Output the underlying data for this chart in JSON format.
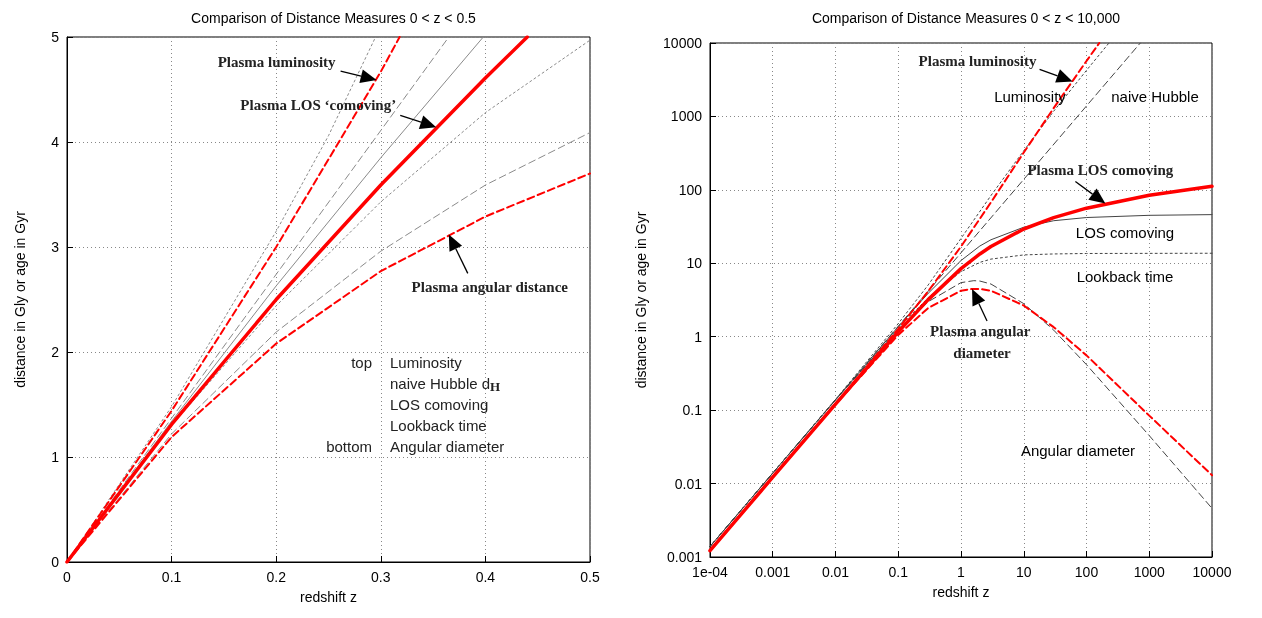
{
  "chart_data": [
    {
      "type": "line",
      "title": "Comparison of Distance Measures 0 < z < 0.5",
      "xlabel": "redshift z",
      "ylabel": "distance in Gly or age in Gyr",
      "xlim": [
        0,
        0.5
      ],
      "ylim": [
        0,
        5
      ],
      "xticks": [
        0,
        0.1,
        0.2,
        0.3,
        0.4,
        0.5
      ],
      "yticks": [
        0,
        1,
        2,
        3,
        4,
        5
      ],
      "grid": true,
      "legend": false,
      "marker": "none",
      "annotations": [
        "top",
        "Luminosity",
        "naive Hubble d$_{H}$",
        "LOS comoving",
        "Lookback time",
        "bottom",
        "Angular diameter",
        {
          "text": "Plasma luminosity",
          "x": 0.296,
          "y": 4.59
        },
        {
          "text": "Plasma LOS ‘comoving’",
          "x": 0.353,
          "y": 4.14
        },
        {
          "text": "Plasma angular distance",
          "x": 0.365,
          "y": 3.12
        }
      ],
      "series": [
        {
          "color": "#8a8a8a",
          "line_style": "dotted",
          "x": [
            0,
            0.1,
            0.2,
            0.25,
            0.295
          ],
          "values": [
            0,
            1.48,
            3.15,
            4.06,
            5
          ]
        },
        {
          "color": "#8a8a8a",
          "line_style": "dashed",
          "x": [
            0,
            0.365
          ],
          "values": [
            0,
            5
          ]
        },
        {
          "color": "#8a8a8a",
          "line_style": "solid",
          "x": [
            0,
            0.1,
            0.2,
            0.3,
            0.398
          ],
          "values": [
            0,
            1.34,
            2.63,
            3.85,
            5
          ]
        },
        {
          "color": "#8a8a8a",
          "line_style": "dotted",
          "x": [
            0,
            0.1,
            0.2,
            0.3,
            0.4,
            0.5
          ],
          "values": [
            0,
            1.3,
            2.44,
            3.43,
            4.28,
            4.97
          ]
        },
        {
          "color": "#8a8a8a",
          "line_style": "dashed",
          "x": [
            0,
            0.1,
            0.2,
            0.3,
            0.4,
            0.5
          ],
          "values": [
            0,
            1.22,
            2.19,
            2.96,
            3.59,
            4.09
          ]
        },
        {
          "color": "#ff0000",
          "line_style": "dashed",
          "x": [
            0,
            0.1,
            0.2,
            0.3,
            0.318
          ],
          "values": [
            0,
            1.44,
            3.0,
            4.67,
            5
          ]
        },
        {
          "color": "#ff0000",
          "line_style": "solid",
          "x": [
            0,
            0.1,
            0.2,
            0.3,
            0.4,
            0.44
          ],
          "values": [
            0,
            1.31,
            2.5,
            3.59,
            4.61,
            5
          ]
        },
        {
          "color": "#ff0000",
          "line_style": "dashed",
          "x": [
            0,
            0.1,
            0.2,
            0.3,
            0.4,
            0.5
          ],
          "values": [
            0,
            1.19,
            2.08,
            2.77,
            3.29,
            3.7
          ]
        }
      ]
    },
    {
      "type": "line",
      "title": "Comparison of Distance Measures 0 < z < 10,000",
      "xlabel": "redshift z",
      "ylabel": "distance in Gly or age in Gyr",
      "log": "xy",
      "xlim": [
        0.0001,
        10000
      ],
      "ylim": [
        0.001,
        10000
      ],
      "xticks": [
        {
          "value": 0.0001,
          "label": "1e-04"
        },
        0.001,
        0.01,
        0.1,
        1,
        10,
        100,
        1000,
        10000
      ],
      "yticks": [
        0.001,
        0.01,
        0.1,
        1,
        10,
        100,
        1000,
        10000
      ],
      "grid": true,
      "legend": false,
      "marker": "none",
      "annotations": [
        {
          "text": "Plasma luminosity",
          "x": 60,
          "y": 3000
        },
        {
          "text": "Plasma LOS comoving",
          "x": 200,
          "y": 65
        },
        {
          "text": "Plasma angular diameter",
          "x": 1.5,
          "y": 4.47
        }
      ],
      "series": [
        {
          "name": "Luminosity",
          "color": "#444444",
          "line_style": "dotted",
          "x": [
            0.0001,
            0.001,
            0.01,
            0.1,
            0.3,
            1,
            3,
            10,
            30,
            100,
            228
          ],
          "values": [
            0.00139,
            0.0139,
            0.14,
            1.51,
            5.07,
            21.8,
            83.6,
            341,
            1178,
            4242,
            10000
          ]
        },
        {
          "name": "naive Hubble",
          "color": "#444444",
          "line_style": "dashed",
          "x": [
            0.0001,
            720
          ],
          "values": [
            0.00139,
            10000
          ]
        },
        {
          "name": "LOS comoving",
          "color": "#444444",
          "line_style": "solid",
          "x": [
            0.0001,
            0.001,
            0.01,
            0.1,
            0.3,
            1,
            2,
            3,
            10,
            30,
            100,
            1000,
            10000
          ],
          "values": [
            0.00139,
            0.0139,
            0.138,
            1.37,
            3.9,
            10.9,
            17.2,
            20.9,
            31,
            38,
            42,
            45,
            46
          ]
        },
        {
          "name": "Lookback time",
          "color": "#444444",
          "line_style": "dotted",
          "x": [
            0.0001,
            0.001,
            0.01,
            0.1,
            0.3,
            1,
            2,
            3,
            10,
            30,
            100,
            10000
          ],
          "values": [
            0.00139,
            0.0139,
            0.137,
            1.3,
            3.4,
            7.7,
            10.3,
            11.4,
            13,
            13.4,
            13.6,
            13.7
          ]
        },
        {
          "name": "Angular diameter",
          "color": "#444444",
          "line_style": "dashed",
          "x": [
            0.0001,
            0.001,
            0.01,
            0.1,
            0.3,
            1,
            1.6,
            2,
            3,
            10,
            30,
            100,
            1000,
            10000
          ],
          "values": [
            0.00139,
            0.0139,
            0.138,
            1.245,
            3.0,
            5.45,
            5.8,
            5.73,
            5.22,
            2.82,
            1.23,
            0.416,
            0.045,
            0.0046
          ]
        },
        {
          "color": "#ff0000",
          "line_style": "dashed",
          "x": [
            0.0001,
            0.001,
            0.01,
            0.1,
            0.3,
            1,
            3,
            10,
            30,
            100,
            160
          ],
          "values": [
            0.00122,
            0.0122,
            0.122,
            1.28,
            4.16,
            16.9,
            67.6,
            322,
            1299,
            5686,
            10000
          ]
        },
        {
          "color": "#ff0000",
          "line_style": "solid",
          "x": [
            0.0001,
            0.001,
            0.01,
            0.1,
            0.3,
            1,
            2,
            3,
            10,
            30,
            100,
            1000,
            10000
          ],
          "values": [
            0.00122,
            0.0122,
            0.121,
            1.163,
            3.2,
            8.46,
            13.4,
            16.9,
            29.3,
            41.9,
            56.3,
            84.3,
            112
          ]
        },
        {
          "color": "#ff0000",
          "line_style": "dashed",
          "x": [
            0.0001,
            0.001,
            0.01,
            0.1,
            0.3,
            1,
            1.5,
            2,
            3,
            10,
            30,
            100,
            1000,
            10000
          ],
          "values": [
            0.00122,
            0.0122,
            0.12,
            1.057,
            2.46,
            4.23,
            4.47,
            4.47,
            4.23,
            2.66,
            1.35,
            0.557,
            0.0842,
            0.013
          ]
        }
      ]
    }
  ]
}
